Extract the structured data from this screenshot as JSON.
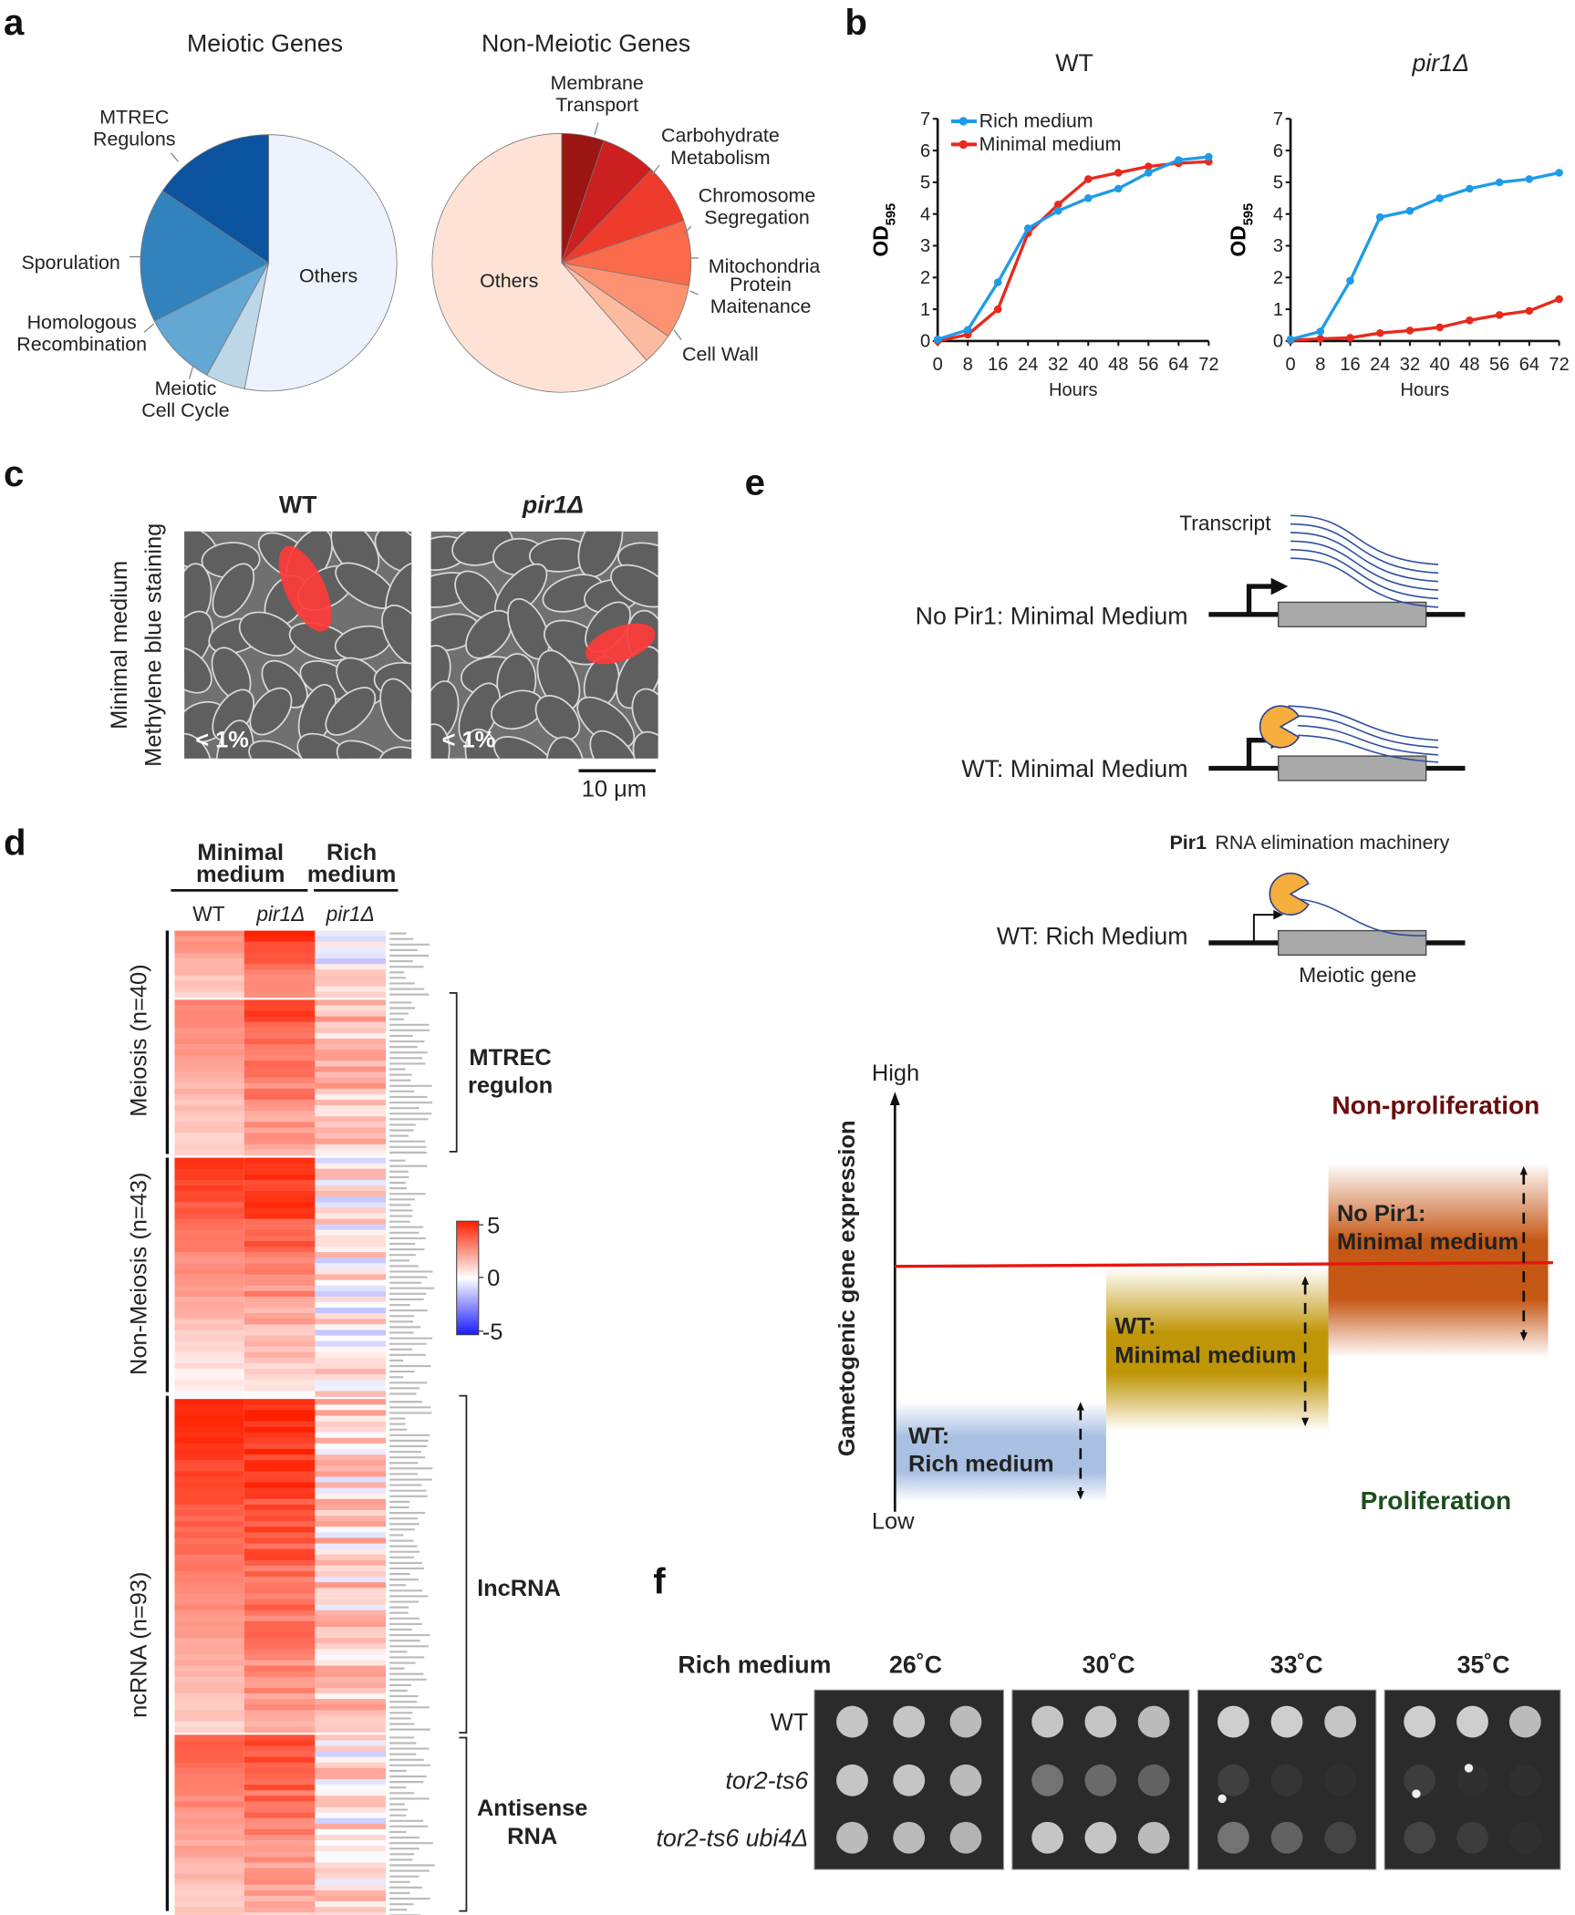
{
  "panel_labels": {
    "a": "a",
    "b": "b",
    "c": "c",
    "d": "d",
    "e": "e",
    "f": "f"
  },
  "chart_data": [
    {
      "id": "pie-meiotic",
      "type": "pie",
      "title": "Meiotic Genes",
      "start": "top-clockwise",
      "slices": [
        {
          "label": "Others",
          "value": 53,
          "color": "#edf3fd"
        },
        {
          "label": "Meiotic Cell Cycle",
          "value": 5,
          "color": "#bdd7e8"
        },
        {
          "label": "Homologous Recombination",
          "value": 9.5,
          "color": "#63a8d3"
        },
        {
          "label": "Sporulation",
          "value": 17,
          "color": "#3282bd"
        },
        {
          "label": "MTREC Regulons",
          "value": 15.5,
          "color": "#0b539f"
        }
      ],
      "label_lines": {
        "Others": [
          "Others"
        ],
        "Meiotic Cell Cycle": [
          "Meiotic",
          "Cell Cycle"
        ],
        "Homologous Recombination": [
          "Homologous",
          "Recombination"
        ],
        "Sporulation": [
          "Sporulation"
        ],
        "MTREC Regulons": [
          "MTREC",
          "Regulons"
        ]
      }
    },
    {
      "id": "pie-non-meiotic",
      "type": "pie",
      "title": "Non-Meiotic Genes",
      "start": "top-clockwise",
      "slices": [
        {
          "label": "Membrane Transport",
          "value": 5.3,
          "color": "#9b1512"
        },
        {
          "label": "Carbohydrate Metabolism",
          "value": 6.9,
          "color": "#cc1f1f"
        },
        {
          "label": "Chromosome Segregation",
          "value": 7.5,
          "color": "#ee3b2c"
        },
        {
          "label": "Mitochondria",
          "value": 8.1,
          "color": "#fb6a4a"
        },
        {
          "label": "Protein Maitenance",
          "value": 6.8,
          "color": "#fc9272"
        },
        {
          "label": "Cell Wall",
          "value": 4.0,
          "color": "#fcbba1"
        },
        {
          "label": "Others",
          "value": 61.4,
          "color": "#fee2d6"
        }
      ],
      "label_lines": {
        "Membrane Transport": [
          "Membrane",
          "Transport"
        ],
        "Carbohydrate Metabolism": [
          "Carbohydrate",
          "Metabolism"
        ],
        "Chromosome Segregation": [
          "Chromosome",
          "Segregation"
        ],
        "Mitochondria": [
          "Mitochondria"
        ],
        "Protein Maitenance": [
          "Protein",
          "Maitenance"
        ],
        "Cell Wall": [
          "Cell Wall"
        ],
        "Others": [
          "Others"
        ]
      }
    },
    {
      "id": "growth-wt",
      "type": "line",
      "title": "WT",
      "xlabel": "Hours",
      "ylabel_main": "OD",
      "ylabel_sub": "595",
      "xlim": [
        0,
        72
      ],
      "ylim": [
        0,
        7
      ],
      "xticks": [
        0,
        8,
        16,
        24,
        32,
        40,
        48,
        56,
        64,
        72
      ],
      "yticks": [
        0,
        1,
        2,
        3,
        4,
        5,
        6,
        7
      ],
      "legend": "top-left",
      "x": [
        0,
        8,
        16,
        24,
        32,
        40,
        48,
        56,
        64,
        72
      ],
      "series": [
        {
          "name": "Rich medium",
          "color": "#1e9be8",
          "values": [
            0.05,
            0.35,
            1.85,
            3.55,
            4.1,
            4.5,
            4.8,
            5.3,
            5.7,
            5.8
          ]
        },
        {
          "name": "Minimal medium",
          "color": "#e8291c",
          "values": [
            0.0,
            0.2,
            1.0,
            3.4,
            4.3,
            5.1,
            5.3,
            5.5,
            5.6,
            5.65
          ]
        }
      ]
    },
    {
      "id": "growth-pir1",
      "type": "line",
      "title": "pir1Δ",
      "xlabel": "Hours",
      "ylabel_main": "OD",
      "ylabel_sub": "595",
      "xlim": [
        0,
        72
      ],
      "ylim": [
        0,
        7
      ],
      "xticks": [
        0,
        8,
        16,
        24,
        32,
        40,
        48,
        56,
        64,
        72
      ],
      "yticks": [
        0,
        1,
        2,
        3,
        4,
        5,
        6,
        7
      ],
      "x": [
        0,
        8,
        16,
        24,
        32,
        40,
        48,
        56,
        64,
        72
      ],
      "series": [
        {
          "name": "Rich medium",
          "color": "#1e9be8",
          "values": [
            0.05,
            0.3,
            1.9,
            3.9,
            4.1,
            4.5,
            4.8,
            5.0,
            5.1,
            5.3
          ]
        },
        {
          "name": "Minimal medium",
          "color": "#e8291c",
          "values": [
            0.02,
            0.07,
            0.1,
            0.25,
            0.33,
            0.43,
            0.65,
            0.82,
            0.95,
            1.32
          ]
        }
      ]
    },
    {
      "id": "heatmap-expression",
      "type": "heatmap",
      "columns": [
        "WT",
        "pir1Δ",
        "pir1Δ"
      ],
      "column_groups": [
        {
          "label_lines": [
            "Minimal",
            "medium"
          ],
          "span": 2
        },
        {
          "label_lines": [
            "Rich",
            "medium"
          ],
          "span": 1
        }
      ],
      "color_scale": {
        "min": -5,
        "mid": 0,
        "max": 5,
        "low": "#1a1aff",
        "midcolor": "#ffffff",
        "high": "#ff2000",
        "ticks": [
          "5",
          "0",
          "-5"
        ]
      },
      "row_groups": [
        {
          "name": "meiosis-other",
          "rows": 12,
          "wt": [
            2.6,
            1.0
          ],
          "pir": [
            4.6,
            2.0
          ],
          "rich": [
            0.2,
            1.6
          ]
        },
        {
          "name": "mtrec",
          "rows": 28,
          "wt": [
            2.8,
            0.9
          ],
          "pir": [
            4.2,
            1.8
          ],
          "rich": [
            1.4,
            1.2
          ]
        },
        {
          "name": "non-meiosis",
          "rows": 43,
          "wt": [
            4.6,
            0.1
          ],
          "pir": [
            5.0,
            0.6
          ],
          "rich": [
            0.3,
            1.6
          ]
        },
        {
          "name": "lncrna",
          "rows": 60,
          "wt": [
            5.0,
            1.0
          ],
          "pir": [
            5.0,
            2.0
          ],
          "rich": [
            0.8,
            1.6
          ]
        },
        {
          "name": "antisense",
          "rows": 33,
          "wt": [
            3.6,
            1.0
          ],
          "pir": [
            4.2,
            1.6
          ],
          "rich": [
            0.5,
            1.6
          ]
        }
      ],
      "side_labels": [
        "Meiosis (n=40)",
        "Non-Meiosis (n=43)",
        "ncRNA (n=93)"
      ],
      "brackets": [
        [
          "MTREC",
          "regulon"
        ],
        [
          "lncRNA"
        ],
        [
          "Antisense",
          "RNA"
        ]
      ]
    }
  ],
  "panel_c": {
    "titles": [
      "WT",
      "pir1Δ"
    ],
    "side_label_lines": [
      "Minimal medium",
      "Methylene blue staining"
    ],
    "percent_labels": [
      "< 1%",
      "< 1%"
    ],
    "scale_bar": "10 μm"
  },
  "panel_e": {
    "transcript_label": "Transcript",
    "rows": [
      "No Pir1: Minimal Medium",
      "WT: Minimal Medium",
      "WT: Rich Medium"
    ],
    "pir1_bold": "Pir1",
    "pir1_rest": "RNA elimination machinery",
    "gene_label": "Meiotic gene",
    "graph": {
      "ylabel": "Gametogenic gene expression",
      "high": "High",
      "low": "Low",
      "top_label": "Non-proliferation",
      "bottom_label": "Proliferation",
      "top_color": "#6a0d0d",
      "bottom_color": "#1c4d1c",
      "threshold_color": "#e8150f",
      "boxes": [
        {
          "lines": [
            "WT:",
            "Rich medium"
          ],
          "color": "#a9c0e2"
        },
        {
          "lines": [
            "WT:",
            "Minimal medium"
          ],
          "color": "#bf9608"
        },
        {
          "lines": [
            "No Pir1:",
            "Minimal medium"
          ],
          "color": "#c65816"
        }
      ]
    }
  },
  "panel_f": {
    "medium": "Rich medium",
    "temperatures": [
      "26˚C",
      "30˚C",
      "33˚C",
      "35˚C"
    ],
    "strains": [
      "WT",
      "tor2-ts6",
      "tor2-ts6 ubi4Δ"
    ],
    "growth_intensity": [
      [
        [
          0.85,
          0.85,
          0.8
        ],
        [
          0.85,
          0.85,
          0.8
        ],
        [
          0.8,
          0.8,
          0.75
        ]
      ],
      [
        [
          0.85,
          0.85,
          0.8
        ],
        [
          0.4,
          0.35,
          0.3
        ],
        [
          0.85,
          0.85,
          0.8
        ]
      ],
      [
        [
          0.9,
          0.9,
          0.85
        ],
        [
          0.12,
          0.06,
          0.03
        ],
        [
          0.4,
          0.3,
          0.15
        ]
      ],
      [
        [
          0.9,
          0.9,
          0.8
        ],
        [
          0.1,
          0.0,
          0.0
        ],
        [
          0.15,
          0.1,
          0.0
        ]
      ]
    ]
  }
}
